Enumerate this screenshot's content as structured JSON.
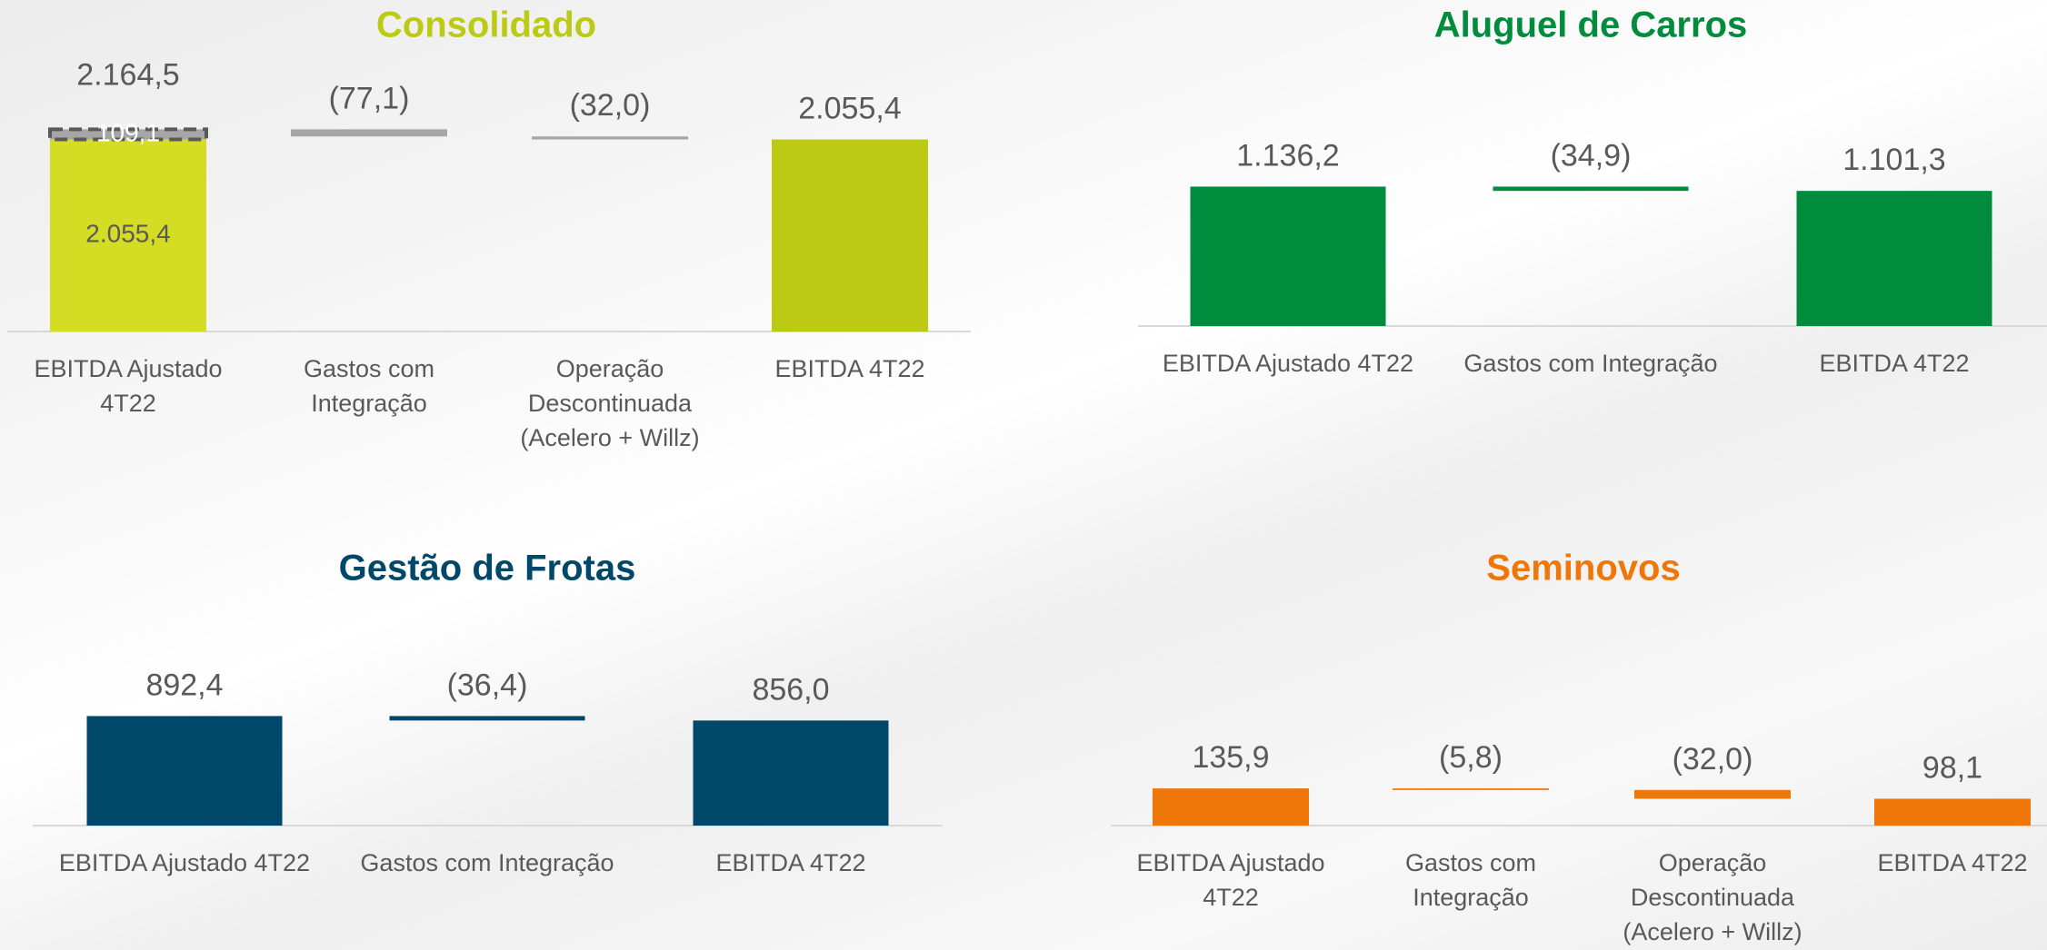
{
  "chart_data": [
    {
      "type": "waterfall",
      "title": "Consolidado",
      "title_color": "#bcca14",
      "categories": [
        "EBITDA Ajustado 4T22",
        "Gastos com Integração",
        "Operação Descontinuada (Acelero + Willz)",
        "EBITDA 4T22"
      ],
      "values": [
        2164.5,
        -77.1,
        -32.0,
        2055.4
      ],
      "value_labels": [
        "2.164,5",
        "(77,1)",
        "(32,0)",
        "2.055,4"
      ],
      "measure": [
        "absolute",
        "relative",
        "relative",
        "absolute"
      ],
      "colors": [
        "#d4dc24",
        "#a6a6a6",
        "#a6a6a6",
        "#bcca14"
      ],
      "breakdown": {
        "values": [
          2055.4,
          109.1
        ],
        "value_labels": [
          "2.055,4",
          "109,1"
        ],
        "colors": [
          "#d4dc24",
          "#a6a6a6"
        ]
      },
      "ylim": [
        0,
        2430
      ]
    },
    {
      "type": "waterfall",
      "title": "Aluguel de Carros",
      "title_color": "#008c3c",
      "categories": [
        "EBITDA Ajustado 4T22",
        "Gastos com Integração",
        "EBITDA 4T22"
      ],
      "values": [
        1136.2,
        -34.9,
        1101.3
      ],
      "value_labels": [
        "1.136,2",
        "(34,9)",
        "1.101,3"
      ],
      "measure": [
        "absolute",
        "relative",
        "absolute"
      ],
      "colors": [
        "#008c3c",
        "#008c3c",
        "#008c3c"
      ],
      "ylim": [
        0,
        1850
      ]
    },
    {
      "type": "waterfall",
      "title": "Gestão de Frotas",
      "title_color": "#00486a",
      "categories": [
        "EBITDA Ajustado 4T22",
        "Gastos com Integração",
        "EBITDA 4T22"
      ],
      "values": [
        892.4,
        -36.4,
        856.0
      ],
      "value_labels": [
        "892,4",
        "(36,4)",
        "856,0"
      ],
      "measure": [
        "absolute",
        "relative",
        "absolute"
      ],
      "colors": [
        "#00486a",
        "#00486a",
        "#00486a"
      ],
      "ylim": [
        0,
        1850
      ]
    },
    {
      "type": "waterfall",
      "title": "Seminovos",
      "title_color": "#ef7609",
      "categories": [
        "EBITDA Ajustado 4T22",
        "Gastos com Integração",
        "Operação Descontinuada (Acelero + Willz)",
        "EBITDA 4T22"
      ],
      "values": [
        135.9,
        -5.8,
        -32.0,
        98.1
      ],
      "value_labels": [
        "135,9",
        "(5,8)",
        "(32,0)",
        "98,1"
      ],
      "measure": [
        "absolute",
        "relative",
        "relative",
        "absolute"
      ],
      "colors": [
        "#ef7609",
        "#ef7609",
        "#ef7609",
        "#ef7609"
      ],
      "ylim": [
        0,
        830
      ]
    }
  ]
}
